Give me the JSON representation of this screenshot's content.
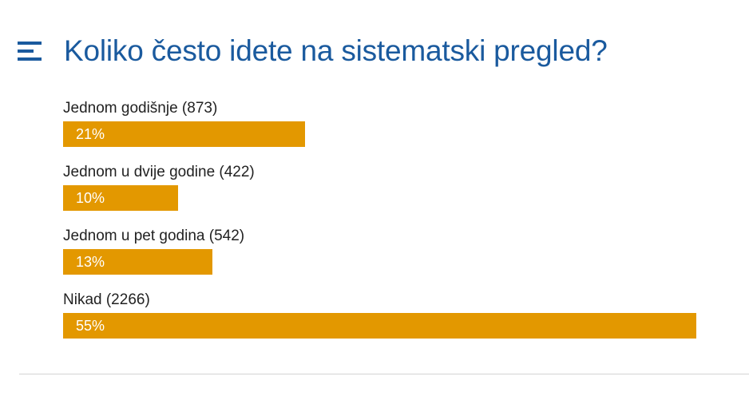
{
  "poll": {
    "title": "Koliko često idete na sistematski pregled?",
    "menu_icon": "hamburger-menu-icon",
    "bar_color": "#e39800",
    "title_color": "#1a5a9e"
  },
  "chart_data": {
    "type": "bar",
    "orientation": "horizontal",
    "title": "Koliko često idete na sistematski pregled?",
    "categories": [
      "Jednom godišnje",
      "Jednom u dvije godine",
      "Jednom u pet godina",
      "Nikad"
    ],
    "labels": [
      "Jednom godišnje (873)",
      "Jednom u dvije godine (422)",
      "Jednom u pet godina (542)",
      "Nikad (2266)"
    ],
    "votes": [
      873,
      422,
      542,
      2266
    ],
    "values": [
      21,
      10,
      13,
      55
    ],
    "value_labels": [
      "21%",
      "10%",
      "13%",
      "55%"
    ],
    "xlim": [
      0,
      55
    ],
    "grid": false
  }
}
